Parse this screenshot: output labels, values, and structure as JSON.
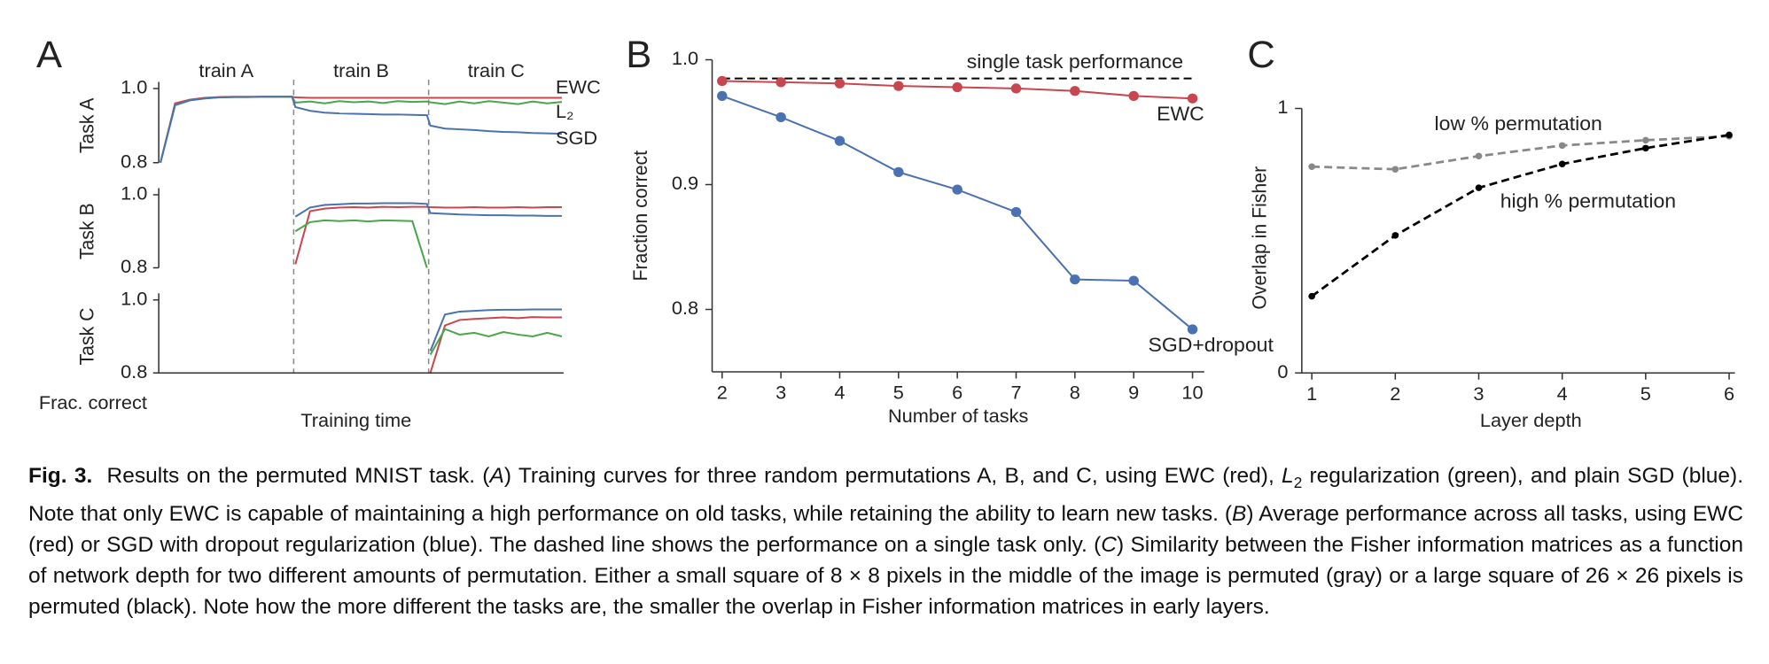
{
  "chart_data": [
    {
      "type": "line",
      "panel": "A",
      "phases": [
        "train A",
        "train B",
        "train C"
      ],
      "xlabel": "Training time",
      "ylabel": "Frac. correct",
      "legend": [
        {
          "name": "EWC",
          "color": "#c8474f"
        },
        {
          "name": "L₂",
          "color": "#4aa64a"
        },
        {
          "name": "SGD",
          "color": "#4a72b0"
        }
      ],
      "rows": [
        {
          "ylabel": "Task A",
          "ylim": [
            0.8,
            1.0
          ],
          "yticks": [
            0.8,
            {
              "value": 1,
              "label": "1.0"
            }
          ],
          "series": [
            {
              "color": "#c8474f",
              "values": [
                0.8,
                0.96,
                0.97,
                0.975,
                0.977,
                0.978,
                0.978,
                0.978,
                0.978,
                0.978,
                0.976,
                0.975,
                0.975,
                0.975,
                0.975,
                0.975,
                0.975,
                0.975,
                0.975,
                0.975,
                0.975,
                0.975,
                0.975,
                0.975,
                0.975,
                0.975,
                0.975,
                0.975,
                0.975,
                0.975
              ]
            },
            {
              "color": "#4aa64a",
              "values": [
                0.8,
                0.955,
                0.968,
                0.973,
                0.976,
                0.977,
                0.977,
                0.978,
                0.978,
                0.978,
                0.962,
                0.965,
                0.96,
                0.966,
                0.963,
                0.965,
                0.961,
                0.966,
                0.964,
                0.965,
                0.963,
                0.958,
                0.965,
                0.96,
                0.966,
                0.962,
                0.958,
                0.965,
                0.96,
                0.964
              ]
            },
            {
              "color": "#4a72b0",
              "values": [
                0.8,
                0.955,
                0.968,
                0.973,
                0.976,
                0.977,
                0.977,
                0.978,
                0.978,
                0.978,
                0.95,
                0.94,
                0.935,
                0.933,
                0.932,
                0.931,
                0.93,
                0.93,
                0.929,
                0.928,
                0.9,
                0.892,
                0.89,
                0.888,
                0.885,
                0.883,
                0.882,
                0.88,
                0.879,
                0.878
              ]
            }
          ]
        },
        {
          "ylabel": "Task B",
          "ylim": [
            0.8,
            1.0
          ],
          "yticks": [
            0.8,
            {
              "value": 1,
              "label": "1.0"
            }
          ],
          "series": [
            {
              "color": "#c8474f",
              "values": [
                null,
                null,
                null,
                null,
                null,
                null,
                null,
                null,
                null,
                null,
                0.81,
                0.955,
                0.962,
                0.965,
                0.966,
                0.965,
                0.967,
                0.966,
                0.967,
                0.967,
                0.966,
                0.965,
                0.965,
                0.966,
                0.965,
                0.965,
                0.966,
                0.965,
                0.966,
                0.966
              ]
            },
            {
              "color": "#4aa64a",
              "values": [
                null,
                null,
                null,
                null,
                null,
                null,
                null,
                null,
                null,
                null,
                0.9,
                0.925,
                0.93,
                0.928,
                0.93,
                0.927,
                0.93,
                0.929,
                0.928,
                0.8,
                null,
                null,
                null,
                null,
                null,
                null,
                null,
                null,
                null,
                null
              ]
            },
            {
              "color": "#4a72b0",
              "values": [
                null,
                null,
                null,
                null,
                null,
                null,
                null,
                null,
                null,
                null,
                0.94,
                0.965,
                0.972,
                0.974,
                0.976,
                0.976,
                0.977,
                0.977,
                0.977,
                0.975,
                0.95,
                0.948,
                0.946,
                0.945,
                0.944,
                0.944,
                0.943,
                0.943,
                0.942,
                0.942
              ]
            }
          ]
        },
        {
          "ylabel": "Task C",
          "ylim": [
            0.8,
            1.0
          ],
          "yticks": [
            0.8,
            {
              "value": 1,
              "label": "1.0"
            }
          ],
          "series": [
            {
              "color": "#c8474f",
              "values": [
                null,
                null,
                null,
                null,
                null,
                null,
                null,
                null,
                null,
                null,
                null,
                null,
                null,
                null,
                null,
                null,
                null,
                null,
                null,
                null,
                0.8,
                0.93,
                0.945,
                0.948,
                0.95,
                0.952,
                0.95,
                0.953,
                0.952,
                0.952
              ]
            },
            {
              "color": "#4aa64a",
              "values": [
                null,
                null,
                null,
                null,
                null,
                null,
                null,
                null,
                null,
                null,
                null,
                null,
                null,
                null,
                null,
                null,
                null,
                null,
                null,
                null,
                0.85,
                0.92,
                0.905,
                0.91,
                0.9,
                0.912,
                0.905,
                0.9,
                0.91,
                0.9
              ]
            },
            {
              "color": "#4a72b0",
              "values": [
                null,
                null,
                null,
                null,
                null,
                null,
                null,
                null,
                null,
                null,
                null,
                null,
                null,
                null,
                null,
                null,
                null,
                null,
                null,
                null,
                0.86,
                0.96,
                0.968,
                0.97,
                0.972,
                0.973,
                0.973,
                0.974,
                0.974,
                0.974
              ]
            }
          ]
        }
      ]
    },
    {
      "type": "line",
      "panel": "B",
      "xlabel": "Number of tasks",
      "ylabel": "Fraction correct",
      "x": [
        2,
        3,
        4,
        5,
        6,
        7,
        8,
        9,
        10
      ],
      "xlim": [
        1.83,
        10.2
      ],
      "xticks": [
        2,
        3,
        4,
        5,
        6,
        7,
        8,
        9,
        10
      ],
      "ylim": [
        0.75,
        1.0
      ],
      "yticks": [
        0.8,
        0.9,
        {
          "value": 1,
          "label": "1.0"
        }
      ],
      "markers": true,
      "reference": {
        "name": "single task performance",
        "value": 0.985,
        "color": "#000000"
      },
      "series": [
        {
          "name": "EWC",
          "color": "#c8474f",
          "values": [
            0.983,
            0.982,
            0.981,
            0.979,
            0.978,
            0.977,
            0.975,
            0.971,
            0.969
          ]
        },
        {
          "name": "SGD+dropout",
          "color": "#4a72b0",
          "values": [
            0.971,
            0.954,
            0.935,
            0.91,
            0.896,
            0.878,
            0.824,
            0.823,
            0.784
          ]
        }
      ]
    },
    {
      "type": "line",
      "panel": "C",
      "xlabel": "Layer depth",
      "ylabel": "Overlap in Fisher",
      "x": [
        1,
        2,
        3,
        4,
        5,
        6
      ],
      "xlim": [
        0.88,
        6.07
      ],
      "xticks": [
        1,
        2,
        3,
        4,
        5,
        6
      ],
      "ylim": [
        0,
        1
      ],
      "yticks": [
        0,
        1
      ],
      "markers": true,
      "dashed": true,
      "series": [
        {
          "name": "low % permutation",
          "color": "#888888",
          "values": [
            0.78,
            0.77,
            0.82,
            0.86,
            0.88,
            0.895
          ]
        },
        {
          "name": "high % permutation",
          "color": "#000000",
          "values": [
            0.29,
            0.52,
            0.7,
            0.79,
            0.85,
            0.9
          ]
        }
      ]
    }
  ],
  "caption": {
    "parts": [
      {
        "text": "Fig. 3.",
        "style": "bold"
      },
      {
        "text": " Results on the permuted MNIST task. ("
      },
      {
        "text": "A",
        "style": "italic"
      },
      {
        "text": ") Training curves for three random permutations A, B, and C, using EWC (red), "
      },
      {
        "text": "L",
        "style": "italic"
      },
      {
        "text": "2",
        "style": "sub"
      },
      {
        "text": " regularization (green), and plain SGD (blue). Note that only EWC is capable of maintaining a high performance on old tasks, while retaining the ability to learn new tasks. ("
      },
      {
        "text": "B",
        "style": "italic"
      },
      {
        "text": ") Average performance across all tasks, using EWC (red) or SGD with dropout regularization (blue). The dashed line shows the performance on a single task only. ("
      },
      {
        "text": "C",
        "style": "italic"
      },
      {
        "text": ") Similarity between the Fisher information matrices as a function of network depth for two different amounts of permutation. Either a small square of 8 × 8 pixels in the middle of the image is permuted (gray) or a large square of 26 × 26 pixels is permuted (black). Note how the more different the tasks are, the smaller the overlap in Fisher information matrices in early layers."
      }
    ]
  }
}
